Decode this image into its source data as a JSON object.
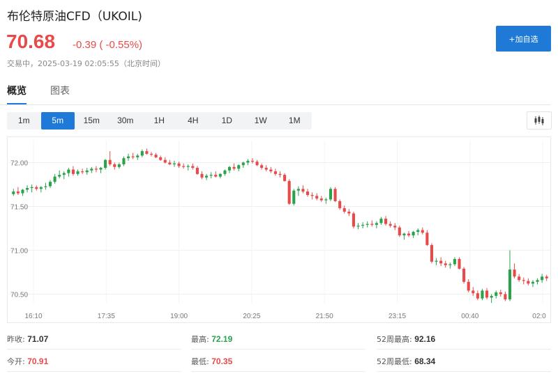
{
  "header": {
    "title": "布伦特原油CFD（UKOIL)",
    "price": "70.68",
    "change": "-0.39 ( -0.55%)",
    "status": "交易中，2025-03-19 02:05:55（北京时间）",
    "watch_label": "+加自选",
    "up_color": "#e84a4a",
    "down_color": "#2aa24c",
    "accent": "#1e7ad6"
  },
  "tabs": [
    {
      "label": "概览",
      "active": true
    },
    {
      "label": "图表",
      "active": false
    }
  ],
  "periods": [
    {
      "label": "1m",
      "active": false
    },
    {
      "label": "5m",
      "active": true
    },
    {
      "label": "15m",
      "active": false
    },
    {
      "label": "30m",
      "active": false
    },
    {
      "label": "1H",
      "active": false
    },
    {
      "label": "4H",
      "active": false
    },
    {
      "label": "1D",
      "active": false
    },
    {
      "label": "1W",
      "active": false
    },
    {
      "label": "1M",
      "active": false
    }
  ],
  "chart_icon": "candlestick-icon",
  "chart_data": {
    "type": "candlestick",
    "x_ticks": [
      "16:10",
      "17:35",
      "19:00",
      "20:25",
      "21:50",
      "23:15",
      "00:40",
      "02:0"
    ],
    "y_ticks": [
      "72.00",
      "71.50",
      "71.00",
      "70.50"
    ],
    "y_tick_values": [
      72.0,
      71.5,
      71.0,
      70.5
    ],
    "ylim": [
      70.4,
      72.25
    ],
    "candles": [
      [
        71.64,
        71.7,
        71.62,
        71.67
      ],
      [
        71.67,
        71.72,
        71.63,
        71.65
      ],
      [
        71.65,
        71.7,
        71.62,
        71.69
      ],
      [
        71.69,
        71.74,
        71.66,
        71.71
      ],
      [
        71.71,
        71.75,
        71.66,
        71.72
      ],
      [
        71.72,
        71.74,
        71.68,
        71.7
      ],
      [
        71.7,
        71.73,
        71.66,
        71.72
      ],
      [
        71.72,
        71.77,
        71.69,
        71.73
      ],
      [
        71.73,
        71.8,
        71.71,
        71.78
      ],
      [
        71.78,
        71.87,
        71.76,
        71.84
      ],
      [
        71.84,
        71.91,
        71.82,
        71.86
      ],
      [
        71.86,
        71.9,
        71.81,
        71.88
      ],
      [
        71.88,
        71.94,
        71.84,
        71.92
      ],
      [
        71.92,
        71.96,
        71.85,
        71.87
      ],
      [
        71.87,
        71.92,
        71.85,
        71.9
      ],
      [
        71.9,
        71.93,
        71.87,
        71.89
      ],
      [
        71.89,
        71.94,
        71.86,
        71.91
      ],
      [
        71.91,
        71.95,
        71.88,
        71.93
      ],
      [
        71.93,
        71.96,
        71.89,
        71.92
      ],
      [
        71.92,
        71.95,
        71.88,
        71.94
      ],
      [
        71.94,
        72.04,
        71.92,
        72.03
      ],
      [
        72.03,
        72.13,
        71.96,
        71.98
      ],
      [
        71.98,
        72.0,
        71.92,
        71.95
      ],
      [
        71.95,
        72.0,
        71.93,
        71.98
      ],
      [
        71.98,
        72.07,
        71.96,
        72.05
      ],
      [
        72.05,
        72.1,
        72.02,
        72.07
      ],
      [
        72.07,
        72.11,
        72.04,
        72.06
      ],
      [
        72.06,
        72.1,
        72.03,
        72.08
      ],
      [
        72.08,
        72.15,
        72.06,
        72.13
      ],
      [
        72.13,
        72.16,
        72.09,
        72.1
      ],
      [
        72.1,
        72.12,
        72.07,
        72.09
      ],
      [
        72.09,
        72.11,
        72.05,
        72.06
      ],
      [
        72.06,
        72.08,
        72.02,
        72.03
      ],
      [
        72.03,
        72.06,
        71.99,
        72.0
      ],
      [
        72.0,
        72.03,
        71.97,
        71.98
      ],
      [
        71.98,
        72.02,
        71.95,
        71.99
      ],
      [
        71.99,
        72.01,
        71.94,
        71.96
      ],
      [
        71.96,
        71.99,
        71.93,
        71.95
      ],
      [
        71.95,
        71.98,
        71.91,
        71.96
      ],
      [
        71.96,
        71.99,
        71.92,
        71.94
      ],
      [
        71.94,
        71.96,
        71.86,
        71.87
      ],
      [
        71.87,
        71.9,
        71.81,
        71.83
      ],
      [
        71.83,
        71.87,
        71.8,
        71.85
      ],
      [
        71.85,
        71.89,
        71.82,
        71.86
      ],
      [
        71.86,
        71.9,
        71.83,
        71.84
      ],
      [
        71.84,
        71.88,
        71.82,
        71.87
      ],
      [
        71.87,
        71.92,
        71.85,
        71.91
      ],
      [
        71.91,
        71.96,
        71.88,
        71.95
      ],
      [
        71.95,
        71.99,
        71.91,
        71.93
      ],
      [
        71.93,
        71.98,
        71.9,
        71.97
      ],
      [
        71.97,
        72.01,
        71.94,
        72.0
      ],
      [
        72.0,
        72.04,
        71.97,
        72.02
      ],
      [
        72.02,
        72.05,
        71.99,
        72.01
      ],
      [
        72.01,
        72.03,
        71.96,
        71.97
      ],
      [
        71.97,
        71.99,
        71.92,
        71.94
      ],
      [
        71.94,
        71.97,
        71.9,
        71.92
      ],
      [
        71.92,
        71.95,
        71.88,
        71.9
      ],
      [
        71.9,
        71.93,
        71.85,
        71.87
      ],
      [
        71.87,
        71.9,
        71.83,
        71.86
      ],
      [
        71.86,
        71.88,
        71.78,
        71.79
      ],
      [
        71.79,
        71.81,
        71.52,
        71.53
      ],
      [
        71.53,
        71.7,
        71.51,
        71.68
      ],
      [
        71.68,
        71.73,
        71.62,
        71.7
      ],
      [
        71.7,
        71.74,
        71.65,
        71.67
      ],
      [
        71.67,
        71.7,
        71.61,
        71.63
      ],
      [
        71.63,
        71.66,
        71.58,
        71.62
      ],
      [
        71.62,
        71.65,
        71.57,
        71.59
      ],
      [
        71.59,
        71.62,
        71.55,
        71.57
      ],
      [
        71.57,
        71.6,
        71.53,
        71.58
      ],
      [
        71.58,
        71.72,
        71.56,
        71.7
      ],
      [
        71.7,
        71.72,
        71.55,
        71.56
      ],
      [
        71.56,
        71.58,
        71.46,
        71.48
      ],
      [
        71.48,
        71.51,
        71.42,
        71.44
      ],
      [
        71.44,
        71.47,
        71.39,
        71.42
      ],
      [
        71.42,
        71.44,
        71.25,
        71.27
      ],
      [
        71.27,
        71.31,
        71.24,
        71.28
      ],
      [
        71.28,
        71.32,
        71.25,
        71.29
      ],
      [
        71.29,
        71.33,
        71.26,
        71.3
      ],
      [
        71.3,
        71.34,
        71.27,
        71.29
      ],
      [
        71.29,
        71.33,
        71.25,
        71.31
      ],
      [
        71.31,
        71.38,
        71.29,
        71.36
      ],
      [
        71.36,
        71.39,
        71.28,
        71.3
      ],
      [
        71.3,
        71.33,
        71.26,
        71.28
      ],
      [
        71.28,
        71.31,
        71.23,
        71.26
      ],
      [
        71.26,
        71.28,
        71.15,
        71.17
      ],
      [
        71.17,
        71.2,
        71.12,
        71.19
      ],
      [
        71.19,
        71.22,
        71.15,
        71.17
      ],
      [
        71.17,
        71.22,
        71.14,
        71.21
      ],
      [
        71.21,
        71.25,
        71.17,
        71.23
      ],
      [
        71.23,
        71.26,
        71.18,
        71.2
      ],
      [
        71.2,
        71.23,
        71.05,
        71.06
      ],
      [
        71.06,
        71.08,
        70.85,
        70.87
      ],
      [
        70.87,
        70.91,
        70.83,
        70.88
      ],
      [
        70.88,
        70.92,
        70.82,
        70.85
      ],
      [
        70.85,
        70.88,
        70.8,
        70.83
      ],
      [
        70.83,
        70.86,
        70.79,
        70.84
      ],
      [
        70.84,
        70.92,
        70.82,
        70.9
      ],
      [
        70.9,
        70.92,
        70.78,
        70.79
      ],
      [
        70.79,
        70.81,
        70.62,
        70.64
      ],
      [
        70.64,
        70.67,
        70.52,
        70.54
      ],
      [
        70.54,
        70.58,
        70.48,
        70.51
      ],
      [
        70.51,
        70.54,
        70.43,
        70.45
      ],
      [
        70.45,
        70.56,
        70.43,
        70.54
      ],
      [
        70.54,
        70.57,
        70.44,
        70.46
      ],
      [
        70.46,
        70.5,
        70.4,
        70.48
      ],
      [
        70.48,
        70.54,
        70.45,
        70.52
      ],
      [
        70.52,
        70.55,
        70.47,
        70.5
      ],
      [
        70.5,
        70.53,
        70.42,
        70.44
      ],
      [
        70.44,
        71.0,
        70.42,
        70.78
      ],
      [
        70.78,
        70.85,
        70.68,
        70.7
      ],
      [
        70.7,
        70.73,
        70.64,
        70.66
      ],
      [
        70.66,
        70.69,
        70.61,
        70.65
      ],
      [
        70.65,
        70.68,
        70.6,
        70.62
      ],
      [
        70.62,
        70.66,
        70.58,
        70.64
      ],
      [
        70.64,
        70.68,
        70.61,
        70.66
      ],
      [
        70.66,
        70.73,
        70.63,
        70.7
      ],
      [
        70.7,
        70.72,
        70.65,
        70.68
      ]
    ]
  },
  "stats": [
    {
      "label": "昨收:",
      "value": "71.07",
      "color": "#333333"
    },
    {
      "label": "最高:",
      "value": "72.19",
      "color": "#2aa24c"
    },
    {
      "label": "52周最高:",
      "value": "92.16",
      "color": "#333333"
    },
    {
      "label": "今开:",
      "value": "70.91",
      "color": "#e84a4a"
    },
    {
      "label": "最低:",
      "value": "70.35",
      "color": "#e84a4a"
    },
    {
      "label": "52周最低:",
      "value": "68.34",
      "color": "#333333"
    }
  ]
}
